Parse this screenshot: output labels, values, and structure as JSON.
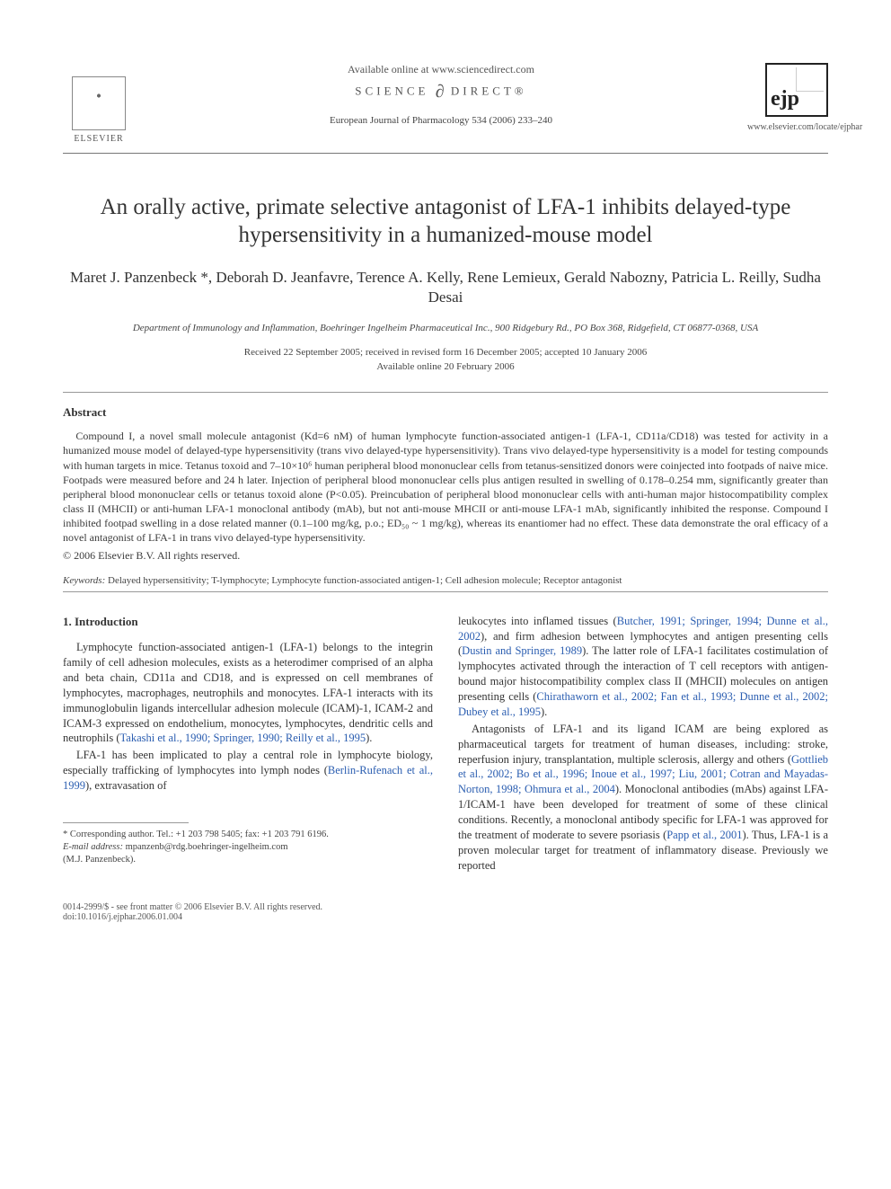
{
  "header": {
    "elsevier_label": "ELSEVIER",
    "available_online": "Available online at www.sciencedirect.com",
    "sciencedirect_left": "SCIENCE",
    "sciencedirect_right": "DIRECT®",
    "journal_ref": "European Journal of Pharmacology 534 (2006) 233–240",
    "ejp_label": "ejp",
    "journal_url": "www.elsevier.com/locate/ejphar"
  },
  "title": "An orally active, primate selective antagonist of LFA-1 inhibits delayed-type hypersensitivity in a humanized-mouse model",
  "authors": "Maret J. Panzenbeck *, Deborah D. Jeanfavre, Terence A. Kelly, Rene Lemieux, Gerald Nabozny, Patricia L. Reilly, Sudha Desai",
  "affiliation": "Department of Immunology and Inflammation, Boehringer Ingelheim Pharmaceutical Inc., 900 Ridgebury Rd., PO Box 368, Ridgefield, CT 06877-0368, USA",
  "dates_line1": "Received 22 September 2005; received in revised form 16 December 2005; accepted 10 January 2006",
  "dates_line2": "Available online 20 February 2006",
  "abstract": {
    "heading": "Abstract",
    "body": "Compound I, a novel small molecule antagonist (Kd=6 nM) of human lymphocyte function-associated antigen-1 (LFA-1, CD11a/CD18) was tested for activity in a humanized mouse model of delayed-type hypersensitivity (trans vivo delayed-type hypersensitivity). Trans vivo delayed-type hypersensitivity is a model for testing compounds with human targets in mice. Tetanus toxoid and 7–10×10⁶ human peripheral blood mononuclear cells from tetanus-sensitized donors were coinjected into footpads of naive mice. Footpads were measured before and 24 h later. Injection of peripheral blood mononuclear cells plus antigen resulted in swelling of 0.178–0.254 mm, significantly greater than peripheral blood mononuclear cells or tetanus toxoid alone (P<0.05). Preincubation of peripheral blood mononuclear cells with anti-human major histocompatibility complex class II (MHCII) or anti-human LFA-1 monoclonal antibody (mAb), but not anti-mouse MHCII or anti-mouse LFA-1 mAb, significantly inhibited the response. Compound I inhibited footpad swelling in a dose related manner (0.1–100 mg/kg, p.o.; ED₅₀ ~ 1 mg/kg), whereas its enantiomer had no effect. These data demonstrate the oral efficacy of a novel antagonist of LFA-1 in trans vivo delayed-type hypersensitivity.",
    "copyright": "© 2006 Elsevier B.V. All rights reserved."
  },
  "keywords": {
    "label": "Keywords:",
    "list": "Delayed hypersensitivity; T-lymphocyte; Lymphocyte function-associated antigen-1; Cell adhesion molecule; Receptor antagonist"
  },
  "intro": {
    "heading": "1. Introduction",
    "p1_a": "Lymphocyte function-associated antigen-1 (LFA-1) belongs to the integrin family of cell adhesion molecules, exists as a heterodimer comprised of an alpha and beta chain, CD11a and CD18, and is expressed on cell membranes of lymphocytes, macrophages, neutrophils and monocytes. LFA-1 interacts with its immunoglobulin ligands intercellular adhesion molecule (ICAM)-1, ICAM-2 and ICAM-3 expressed on endothelium, monocytes, lymphocytes, dendritic cells and neutrophils (",
    "p1_cite": "Takashi et al., 1990; Springer, 1990; Reilly et al., 1995",
    "p1_b": ").",
    "p2_a": "LFA-1 has been implicated to play a central role in lymphocyte biology, especially trafficking of lymphocytes into lymph nodes (",
    "p2_cite": "Berlin-Rufenach et al., 1999",
    "p2_b": "), extravasation of",
    "p3_a": "leukocytes into inflamed tissues (",
    "p3_cite1": "Butcher, 1991; Springer, 1994; Dunne et al., 2002",
    "p3_b": "), and firm adhesion between lymphocytes and antigen presenting cells (",
    "p3_cite2": "Dustin and Springer, 1989",
    "p3_c": "). The latter role of LFA-1 facilitates costimulation of lymphocytes activated through the interaction of T cell receptors with antigen-bound major histocompatibility complex class II (MHCII) molecules on antigen presenting cells (",
    "p3_cite3": "Chirathaworn et al., 2002; Fan et al., 1993; Dunne et al., 2002; Dubey et al., 1995",
    "p3_d": ").",
    "p4_a": "Antagonists of LFA-1 and its ligand ICAM are being explored as pharmaceutical targets for treatment of human diseases, including: stroke, reperfusion injury, transplantation, multiple sclerosis, allergy and others (",
    "p4_cite1": "Gottlieb et al., 2002; Bo et al., 1996; Inoue et al., 1997; Liu, 2001; Cotran and Mayadas-Norton, 1998; Ohmura et al., 2004",
    "p4_b": "). Monoclonal antibodies (mAbs) against LFA-1/ICAM-1 have been developed for treatment of some of these clinical conditions. Recently, a monoclonal antibody specific for LFA-1 was approved for the treatment of moderate to severe psoriasis (",
    "p4_cite2": "Papp et al., 2001",
    "p4_c": "). Thus, LFA-1 is a proven molecular target for treatment of inflammatory disease. Previously we reported"
  },
  "footnote": {
    "corr": "* Corresponding author. Tel.: +1 203 798 5405; fax: +1 203 791 6196.",
    "email_label": "E-mail address:",
    "email": "mpanzenb@rdg.boehringer-ingelheim.com",
    "email_name": "(M.J. Panzenbeck)."
  },
  "footer": {
    "left_line1": "0014-2999/$ - see front matter © 2006 Elsevier B.V. All rights reserved.",
    "left_line2": "doi:10.1016/j.ejphar.2006.01.004"
  },
  "colors": {
    "text": "#3a3a3a",
    "cite": "#2a5db0",
    "rule": "#999999"
  }
}
